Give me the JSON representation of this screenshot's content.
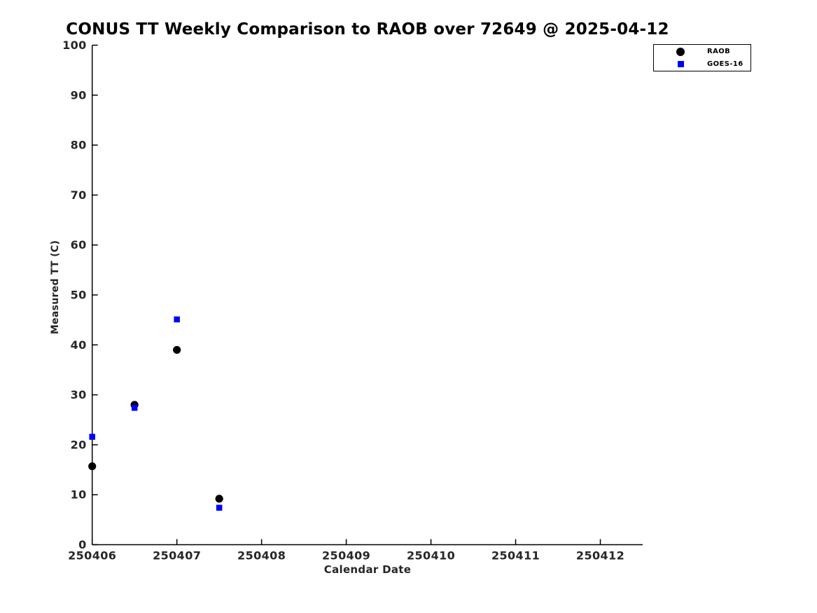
{
  "page": {
    "background": "#ffffff"
  },
  "chart_data": {
    "type": "scatter",
    "title": "CONUS TT Weekly Comparison to RAOB over 72649 @ 2025-04-12",
    "xlabel": "Calendar Date",
    "ylabel": "Measured TT (C)",
    "xlim": [
      250406,
      250412.5
    ],
    "ylim": [
      0,
      100
    ],
    "xticks": [
      250406,
      250407,
      250408,
      250409,
      250410,
      250411,
      250412
    ],
    "yticks": [
      0,
      10,
      20,
      30,
      40,
      50,
      60,
      70,
      80,
      90,
      100
    ],
    "grid": false,
    "tick_direction": "in",
    "legend_position": "top-right",
    "x": [
      250406,
      250406.5,
      250407,
      250407.5
    ],
    "series": [
      {
        "name": "RAOB",
        "marker": "circle",
        "color": "#000000",
        "values": [
          15.7,
          28.0,
          39.0,
          9.2
        ]
      },
      {
        "name": "GOES-16",
        "marker": "square",
        "color": "#0000ff",
        "values": [
          21.6,
          27.4,
          45.1,
          7.4
        ]
      }
    ]
  }
}
